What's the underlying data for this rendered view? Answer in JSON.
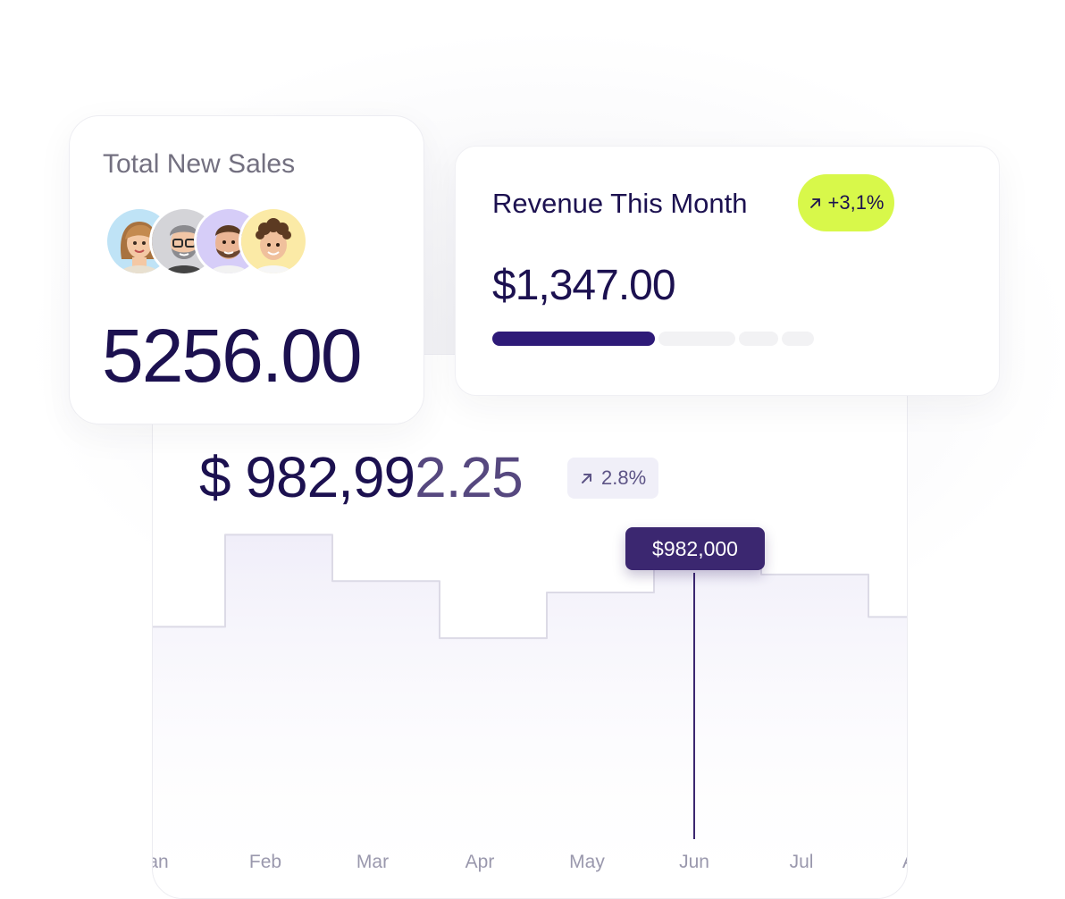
{
  "sales_card": {
    "title": "Total New Sales",
    "value": "5256.00",
    "avatars": [
      {
        "name": "avatar-woman",
        "bg": "#bfe3f6"
      },
      {
        "name": "avatar-man-glasses",
        "bg": "#d4d4d8"
      },
      {
        "name": "avatar-man-beard",
        "bg": "#d6cdf8"
      },
      {
        "name": "avatar-man-curly",
        "bg": "#fbeaa6"
      }
    ]
  },
  "revenue_card": {
    "title": "Revenue This Month",
    "badge": "+3,1%",
    "badge_icon": "arrow-up-right-icon",
    "value": "$1,347.00",
    "progress": [
      {
        "fill": true
      },
      {
        "fill": false
      },
      {
        "fill": false
      },
      {
        "fill": false
      }
    ]
  },
  "chart_card": {
    "value_part1": "$ 982,99",
    "value_part2": "2.25",
    "change": "2.8%",
    "change_icon": "arrow-up-right-icon",
    "tooltip": "$982,000"
  },
  "chart_data": {
    "type": "area",
    "step": true,
    "categories": [
      "Jan",
      "Feb",
      "Mar",
      "Apr",
      "May",
      "Jun",
      "Jul",
      "Aug"
    ],
    "category_labels": [
      "an",
      "Feb",
      "Mar",
      "Apr",
      "May",
      "Jun",
      "Jul",
      "A"
    ],
    "values": [
      700000,
      982000,
      840000,
      665000,
      805000,
      982000,
      860000,
      730000
    ],
    "highlight": {
      "category": "Jun",
      "value": 982000,
      "label": "$982,000"
    },
    "xlabel": "",
    "ylabel": "",
    "ylim": [
      0,
      1150000
    ],
    "grid": false,
    "colors": {
      "line": "#dcdae6",
      "fill_top": "#f1effa",
      "marker": "#3b2770"
    }
  },
  "colors": {
    "primary": "#1c1150",
    "accent_lime": "#d8f84a",
    "progress_fill": "#2e1a78"
  }
}
